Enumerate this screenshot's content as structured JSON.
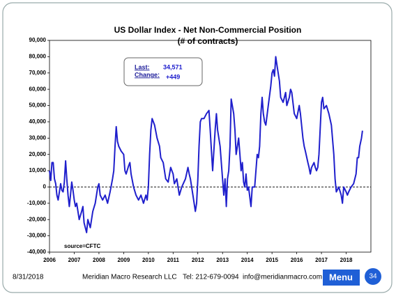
{
  "chart_data": {
    "type": "line",
    "title": "US Dollar Index - Net Non-Commercial Position",
    "subtitle": "(# of contracts)",
    "source": "source=CFTC",
    "reference_line": 0,
    "color": "#1f1fcc",
    "info_box": {
      "last_label": "Last:",
      "last_value": "34,571",
      "change_label": "Change:",
      "change_value": "+449"
    },
    "xlim": [
      2006,
      2019
    ],
    "xticks": [
      2006,
      2007,
      2008,
      2009,
      2010,
      2011,
      2012,
      2013,
      2014,
      2015,
      2016,
      2017,
      2018
    ],
    "ylim": [
      -40000,
      90000
    ],
    "yticks": [
      {
        "value": -40000,
        "label": "-40,000"
      },
      {
        "value": -30000,
        "label": "-30,000"
      },
      {
        "value": -20000,
        "label": "-20,000"
      },
      {
        "value": -10000,
        "label": "-10,000"
      },
      0,
      {
        "value": 10000,
        "label": "10,000"
      },
      {
        "value": 20000,
        "label": "20,000"
      },
      {
        "value": 30000,
        "label": "30,000"
      },
      {
        "value": 40000,
        "label": "40,000"
      },
      {
        "value": 50000,
        "label": "50,000"
      },
      {
        "value": 60000,
        "label": "60,000"
      },
      {
        "value": 70000,
        "label": "70,000"
      },
      {
        "value": 80000,
        "label": "80,000"
      },
      {
        "value": 90000,
        "label": "90,000"
      }
    ],
    "x": [
      2006.0,
      2006.05,
      2006.1,
      2006.15,
      2006.2,
      2006.25,
      2006.3,
      2006.35,
      2006.4,
      2006.45,
      2006.5,
      2006.55,
      2006.6,
      2006.65,
      2006.7,
      2006.75,
      2006.8,
      2006.85,
      2006.9,
      2006.95,
      2007.0,
      2007.05,
      2007.1,
      2007.2,
      2007.3,
      2007.35,
      2007.4,
      2007.5,
      2007.55,
      2007.65,
      2007.75,
      2007.85,
      2007.95,
      2008.0,
      2008.05,
      2008.15,
      2008.25,
      2008.35,
      2008.45,
      2008.55,
      2008.6,
      2008.65,
      2008.7,
      2008.75,
      2008.8,
      2008.9,
      2009.0,
      2009.05,
      2009.1,
      2009.2,
      2009.25,
      2009.3,
      2009.4,
      2009.5,
      2009.6,
      2009.7,
      2009.8,
      2009.9,
      2009.95,
      2010.0,
      2010.05,
      2010.1,
      2010.15,
      2010.25,
      2010.35,
      2010.45,
      2010.5,
      2010.6,
      2010.7,
      2010.8,
      2010.9,
      2011.0,
      2011.05,
      2011.15,
      2011.25,
      2011.35,
      2011.5,
      2011.6,
      2011.65,
      2011.7,
      2011.8,
      2011.9,
      2011.95,
      2012.0,
      2012.05,
      2012.1,
      2012.15,
      2012.25,
      2012.35,
      2012.45,
      2012.5,
      2012.55,
      2012.6,
      2012.7,
      2012.75,
      2012.8,
      2012.9,
      2013.0,
      2013.05,
      2013.1,
      2013.15,
      2013.2,
      2013.25,
      2013.3,
      2013.35,
      2013.45,
      2013.5,
      2013.55,
      2013.65,
      2013.7,
      2013.75,
      2013.8,
      2013.85,
      2013.9,
      2013.95,
      2014.0,
      2014.05,
      2014.15,
      2014.2,
      2014.3,
      2014.4,
      2014.45,
      2014.5,
      2014.55,
      2014.6,
      2014.65,
      2014.7,
      2014.75,
      2014.85,
      2014.95,
      2015.0,
      2015.05,
      2015.1,
      2015.15,
      2015.2,
      2015.3,
      2015.35,
      2015.45,
      2015.55,
      2015.6,
      2015.7,
      2015.75,
      2015.8,
      2015.9,
      2016.0,
      2016.1,
      2016.15,
      2016.25,
      2016.3,
      2016.35,
      2016.45,
      2016.5,
      2016.55,
      2016.6,
      2016.7,
      2016.75,
      2016.8,
      2016.85,
      2016.9,
      2017.0,
      2017.05,
      2017.1,
      2017.2,
      2017.3,
      2017.4,
      2017.5,
      2017.55,
      2017.6,
      2017.7,
      2017.8,
      2017.85,
      2017.9,
      2018.0,
      2018.05,
      2018.1,
      2018.2,
      2018.3,
      2018.4,
      2018.45,
      2018.5,
      2018.55,
      2018.62,
      2018.66
    ],
    "values": [
      10000,
      4000,
      15000,
      15000,
      5000,
      2000,
      -5000,
      -8000,
      -3000,
      2000,
      -2000,
      -3000,
      3000,
      16000,
      5000,
      -5000,
      -12000,
      -5000,
      3000,
      -2000,
      -8000,
      -12000,
      -10000,
      -20000,
      -15000,
      -12000,
      -22000,
      -28000,
      -20000,
      -25000,
      -15000,
      -10000,
      0,
      2000,
      -5000,
      -8000,
      -5000,
      -10000,
      -3000,
      5000,
      10000,
      25000,
      37000,
      28000,
      25000,
      22000,
      20000,
      10000,
      8000,
      13000,
      15000,
      8000,
      0,
      -5000,
      -8000,
      -5000,
      -10000,
      -5000,
      -8000,
      0,
      20000,
      35000,
      42000,
      38000,
      30000,
      25000,
      18000,
      15000,
      5000,
      3000,
      12000,
      8000,
      2000,
      5000,
      -5000,
      0,
      5000,
      12000,
      8000,
      5000,
      -5000,
      -15000,
      -10000,
      5000,
      25000,
      40000,
      42000,
      42000,
      45000,
      47000,
      35000,
      22000,
      10000,
      35000,
      45000,
      35000,
      25000,
      5000,
      -5000,
      5000,
      -12000,
      5000,
      10000,
      25000,
      54000,
      45000,
      35000,
      20000,
      30000,
      20000,
      10000,
      15000,
      3000,
      0,
      8000,
      -2000,
      0,
      -12000,
      0,
      0,
      20000,
      18000,
      25000,
      45000,
      55000,
      45000,
      40000,
      38000,
      50000,
      62000,
      70000,
      72000,
      68000,
      80000,
      75000,
      65000,
      55000,
      52000,
      58000,
      50000,
      55000,
      60000,
      58000,
      45000,
      42000,
      50000,
      45000,
      30000,
      25000,
      22000,
      15000,
      12000,
      8000,
      12000,
      15000,
      12000,
      10000,
      12000,
      20000,
      52000,
      55000,
      48000,
      50000,
      45000,
      38000,
      20000,
      5000,
      -3000,
      0,
      -5000,
      -10000,
      0,
      -3000,
      -5000,
      -3000,
      0,
      2000,
      8000,
      18000,
      18000,
      25000,
      30000,
      34571
    ]
  },
  "footer": {
    "date": "8/31/2018",
    "company": "Meridian Macro Research LLC",
    "phone": "Tel: 212-679-0094",
    "email": "info@meridianmacro.com",
    "menu": "Menu",
    "page": "34"
  }
}
